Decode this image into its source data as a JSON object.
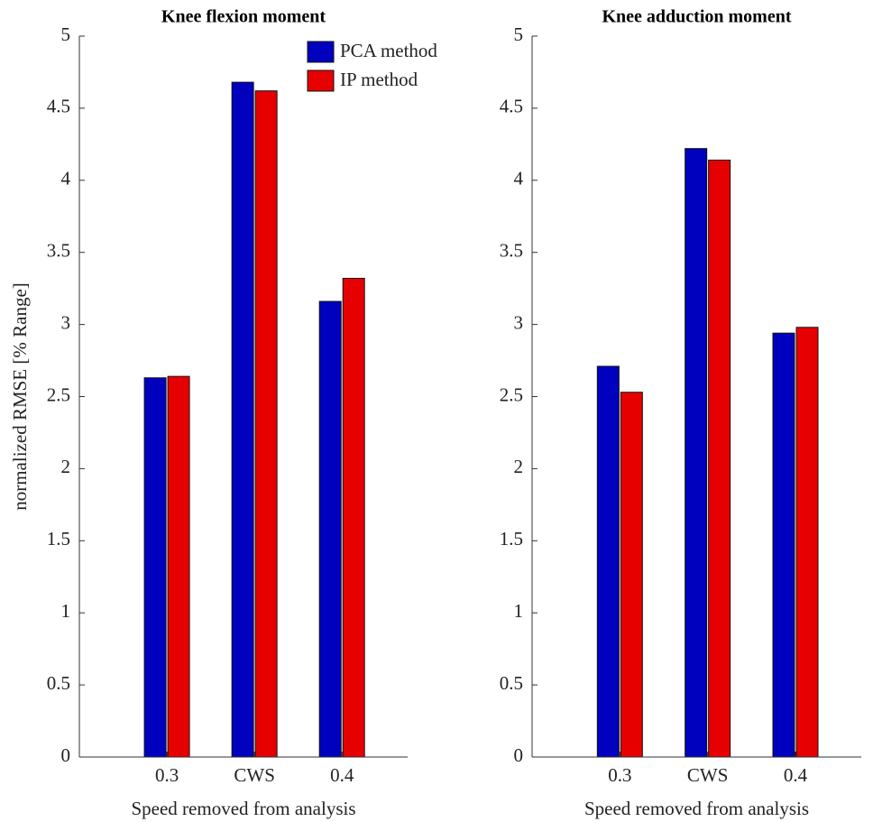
{
  "chart_data": [
    {
      "type": "bar",
      "title": "Knee flexion moment",
      "ylabel": "normalized RMSE [% Range]",
      "xlabel": "Speed removed from analysis",
      "categories": [
        "0.3",
        "CWS",
        "0.4"
      ],
      "series": [
        {
          "name": "PCA method",
          "color": "#0000bf",
          "values": [
            2.63,
            4.68,
            3.16
          ]
        },
        {
          "name": "IP method",
          "color": "#e60000",
          "values": [
            2.64,
            4.62,
            3.32
          ]
        }
      ],
      "ylim": [
        0,
        5
      ],
      "yticks": [
        0,
        0.5,
        1,
        1.5,
        2,
        2.5,
        3,
        3.5,
        4,
        4.5,
        5
      ],
      "legend": "upper right"
    },
    {
      "type": "bar",
      "title": "Knee adduction moment",
      "xlabel": "Speed removed from analysis",
      "categories": [
        "0.3",
        "CWS",
        "0.4"
      ],
      "series": [
        {
          "color": "#0000bf",
          "values": [
            2.71,
            4.22,
            2.94
          ]
        },
        {
          "color": "#e60000",
          "values": [
            2.53,
            4.14,
            2.98
          ]
        }
      ],
      "ylim": [
        0,
        5
      ],
      "yticks": [
        0,
        0.5,
        1,
        1.5,
        2,
        2.5,
        3,
        3.5,
        4,
        4.5,
        5
      ]
    }
  ]
}
